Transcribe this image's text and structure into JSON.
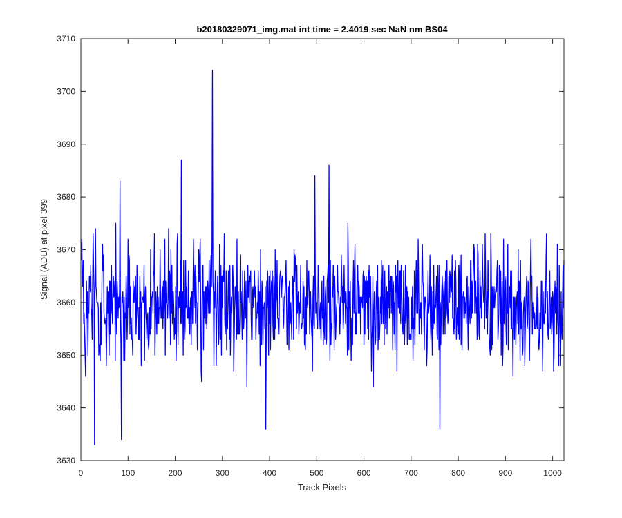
{
  "chart_data": {
    "type": "line",
    "title": "b20180329071_img.mat int time = 2.4019 sec  NaN nm BS04",
    "xlabel": "Track Pixels",
    "ylabel": "Signal (ADU) at pixel 399",
    "xlim": [
      0,
      1024
    ],
    "ylim": [
      3630,
      3710
    ],
    "x_ticks": [
      0,
      100,
      200,
      300,
      400,
      500,
      600,
      700,
      800,
      900,
      1000
    ],
    "y_ticks": [
      3630,
      3640,
      3650,
      3660,
      3670,
      3680,
      3690,
      3700,
      3710
    ],
    "grid": false,
    "series": [
      {
        "color": "#0000ff",
        "x_start": 1,
        "x_step": 1,
        "point_count": 1024,
        "mean": 3660,
        "noise_std": 5.5,
        "min": 3633,
        "max": 3704,
        "notable_points": [
          {
            "x": 29,
            "y": 3633
          },
          {
            "x": 83,
            "y": 3683
          },
          {
            "x": 86,
            "y": 3634
          },
          {
            "x": 213,
            "y": 3687
          },
          {
            "x": 279,
            "y": 3704
          },
          {
            "x": 392,
            "y": 3636
          },
          {
            "x": 496,
            "y": 3684
          },
          {
            "x": 526,
            "y": 3686
          },
          {
            "x": 761,
            "y": 3636
          }
        ]
      }
    ]
  }
}
